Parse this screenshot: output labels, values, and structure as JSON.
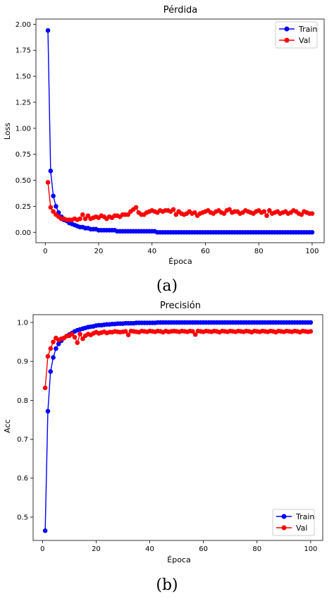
{
  "chart_data": [
    {
      "type": "line",
      "title": "Pérdida",
      "xlabel": "Época",
      "ylabel": "Loss",
      "xlim": [
        -3.5,
        104.5
      ],
      "ylim": [
        -0.1,
        2.05
      ],
      "xticks": [
        0,
        20,
        40,
        60,
        80,
        100
      ],
      "xtick_labels": [
        "0",
        "20",
        "40",
        "60",
        "80",
        "100"
      ],
      "yticks": [
        0.0,
        0.25,
        0.5,
        0.75,
        1.0,
        1.25,
        1.5,
        1.75,
        2.0
      ],
      "ytick_labels": [
        "0.00",
        "0.25",
        "0.50",
        "0.75",
        "1.00",
        "1.25",
        "1.50",
        "1.75",
        "2.00"
      ],
      "legend_position": "top-right",
      "caption": "(a)",
      "series": [
        {
          "name": "Train",
          "color": "#0000ff",
          "values": [
            1.94,
            0.59,
            0.35,
            0.25,
            0.19,
            0.15,
            0.12,
            0.11,
            0.09,
            0.08,
            0.07,
            0.06,
            0.05,
            0.05,
            0.04,
            0.04,
            0.03,
            0.03,
            0.03,
            0.02,
            0.02,
            0.02,
            0.02,
            0.02,
            0.02,
            0.02,
            0.01,
            0.01,
            0.01,
            0.01,
            0.01,
            0.01,
            0.01,
            0.01,
            0.01,
            0.01,
            0.01,
            0.01,
            0.01,
            0.01,
            0.01,
            0.0,
            0.0,
            0.0,
            0.0,
            0.0,
            0.0,
            0.0,
            0.0,
            0.0,
            0.0,
            0.0,
            0.0,
            0.0,
            0.0,
            0.0,
            0.0,
            0.0,
            0.0,
            0.0,
            0.0,
            0.0,
            0.0,
            0.0,
            0.0,
            0.0,
            0.0,
            0.0,
            0.0,
            0.0,
            0.0,
            0.0,
            0.0,
            0.0,
            0.0,
            0.0,
            0.0,
            0.0,
            0.0,
            0.0,
            0.0,
            0.0,
            0.0,
            0.0,
            0.0,
            0.0,
            0.0,
            0.0,
            0.0,
            0.0,
            0.0,
            0.0,
            0.0,
            0.0,
            0.0,
            0.0,
            0.0,
            0.0,
            0.0,
            0.0
          ]
        },
        {
          "name": "Val",
          "color": "#ff0000",
          "values": [
            0.48,
            0.24,
            0.2,
            0.17,
            0.15,
            0.13,
            0.13,
            0.12,
            0.12,
            0.12,
            0.13,
            0.12,
            0.13,
            0.17,
            0.13,
            0.16,
            0.13,
            0.14,
            0.15,
            0.14,
            0.16,
            0.15,
            0.13,
            0.15,
            0.14,
            0.16,
            0.16,
            0.15,
            0.17,
            0.17,
            0.17,
            0.2,
            0.22,
            0.24,
            0.19,
            0.17,
            0.17,
            0.19,
            0.2,
            0.21,
            0.2,
            0.19,
            0.21,
            0.2,
            0.21,
            0.21,
            0.2,
            0.22,
            0.17,
            0.2,
            0.18,
            0.17,
            0.18,
            0.2,
            0.18,
            0.19,
            0.16,
            0.18,
            0.19,
            0.2,
            0.21,
            0.19,
            0.18,
            0.2,
            0.21,
            0.19,
            0.18,
            0.21,
            0.22,
            0.19,
            0.2,
            0.2,
            0.18,
            0.19,
            0.21,
            0.2,
            0.19,
            0.18,
            0.2,
            0.21,
            0.19,
            0.2,
            0.16,
            0.21,
            0.18,
            0.19,
            0.2,
            0.18,
            0.19,
            0.2,
            0.18,
            0.19,
            0.21,
            0.2,
            0.18,
            0.17,
            0.2,
            0.19,
            0.18,
            0.18
          ]
        }
      ]
    },
    {
      "type": "line",
      "title": "Precisión",
      "xlabel": "Época",
      "ylabel": "Acc",
      "xlim": [
        -3.5,
        104.5
      ],
      "ylim": [
        0.44,
        1.02
      ],
      "xticks": [
        0,
        20,
        40,
        60,
        80,
        100
      ],
      "xtick_labels": [
        "0",
        "20",
        "40",
        "60",
        "80",
        "100"
      ],
      "yticks": [
        0.5,
        0.6,
        0.7,
        0.8,
        0.9,
        1.0
      ],
      "ytick_labels": [
        "0.5",
        "0.6",
        "0.7",
        "0.8",
        "0.9",
        "1.0"
      ],
      "legend_position": "bottom-right",
      "caption": "(b)",
      "series": [
        {
          "name": "Train",
          "color": "#0000ff",
          "values": [
            0.465,
            0.772,
            0.874,
            0.91,
            0.933,
            0.945,
            0.953,
            0.96,
            0.965,
            0.969,
            0.973,
            0.977,
            0.98,
            0.982,
            0.984,
            0.986,
            0.988,
            0.989,
            0.99,
            0.992,
            0.993,
            0.993,
            0.994,
            0.995,
            0.995,
            0.996,
            0.996,
            0.997,
            0.997,
            0.997,
            0.998,
            0.998,
            0.998,
            0.998,
            0.999,
            0.999,
            0.999,
            0.999,
            0.999,
            0.999,
            0.999,
            0.999,
            1.0,
            1.0,
            1.0,
            1.0,
            1.0,
            1.0,
            1.0,
            1.0,
            1.0,
            1.0,
            1.0,
            1.0,
            1.0,
            1.0,
            1.0,
            1.0,
            1.0,
            1.0,
            1.0,
            1.0,
            1.0,
            1.0,
            1.0,
            1.0,
            1.0,
            1.0,
            1.0,
            1.0,
            1.0,
            1.0,
            1.0,
            1.0,
            1.0,
            1.0,
            1.0,
            1.0,
            1.0,
            1.0,
            1.0,
            1.0,
            1.0,
            1.0,
            1.0,
            1.0,
            1.0,
            1.0,
            1.0,
            1.0,
            1.0,
            1.0,
            1.0,
            1.0,
            1.0,
            1.0,
            1.0,
            1.0,
            1.0,
            1.0
          ]
        },
        {
          "name": "Val",
          "color": "#ff0000",
          "values": [
            0.832,
            0.913,
            0.933,
            0.95,
            0.96,
            0.955,
            0.958,
            0.96,
            0.965,
            0.966,
            0.97,
            0.962,
            0.948,
            0.97,
            0.958,
            0.966,
            0.97,
            0.968,
            0.972,
            0.975,
            0.972,
            0.974,
            0.976,
            0.973,
            0.975,
            0.975,
            0.977,
            0.976,
            0.975,
            0.976,
            0.977,
            0.968,
            0.978,
            0.977,
            0.976,
            0.975,
            0.978,
            0.977,
            0.976,
            0.978,
            0.977,
            0.976,
            0.978,
            0.977,
            0.975,
            0.978,
            0.976,
            0.977,
            0.978,
            0.977,
            0.976,
            0.978,
            0.977,
            0.976,
            0.978,
            0.977,
            0.969,
            0.978,
            0.977,
            0.976,
            0.978,
            0.977,
            0.976,
            0.978,
            0.977,
            0.975,
            0.978,
            0.977,
            0.976,
            0.978,
            0.977,
            0.976,
            0.978,
            0.977,
            0.976,
            0.978,
            0.977,
            0.975,
            0.978,
            0.977,
            0.976,
            0.978,
            0.977,
            0.976,
            0.978,
            0.977,
            0.975,
            0.978,
            0.977,
            0.976,
            0.978,
            0.977,
            0.976,
            0.978,
            0.977,
            0.975,
            0.978,
            0.977,
            0.976,
            0.977
          ]
        }
      ]
    }
  ]
}
